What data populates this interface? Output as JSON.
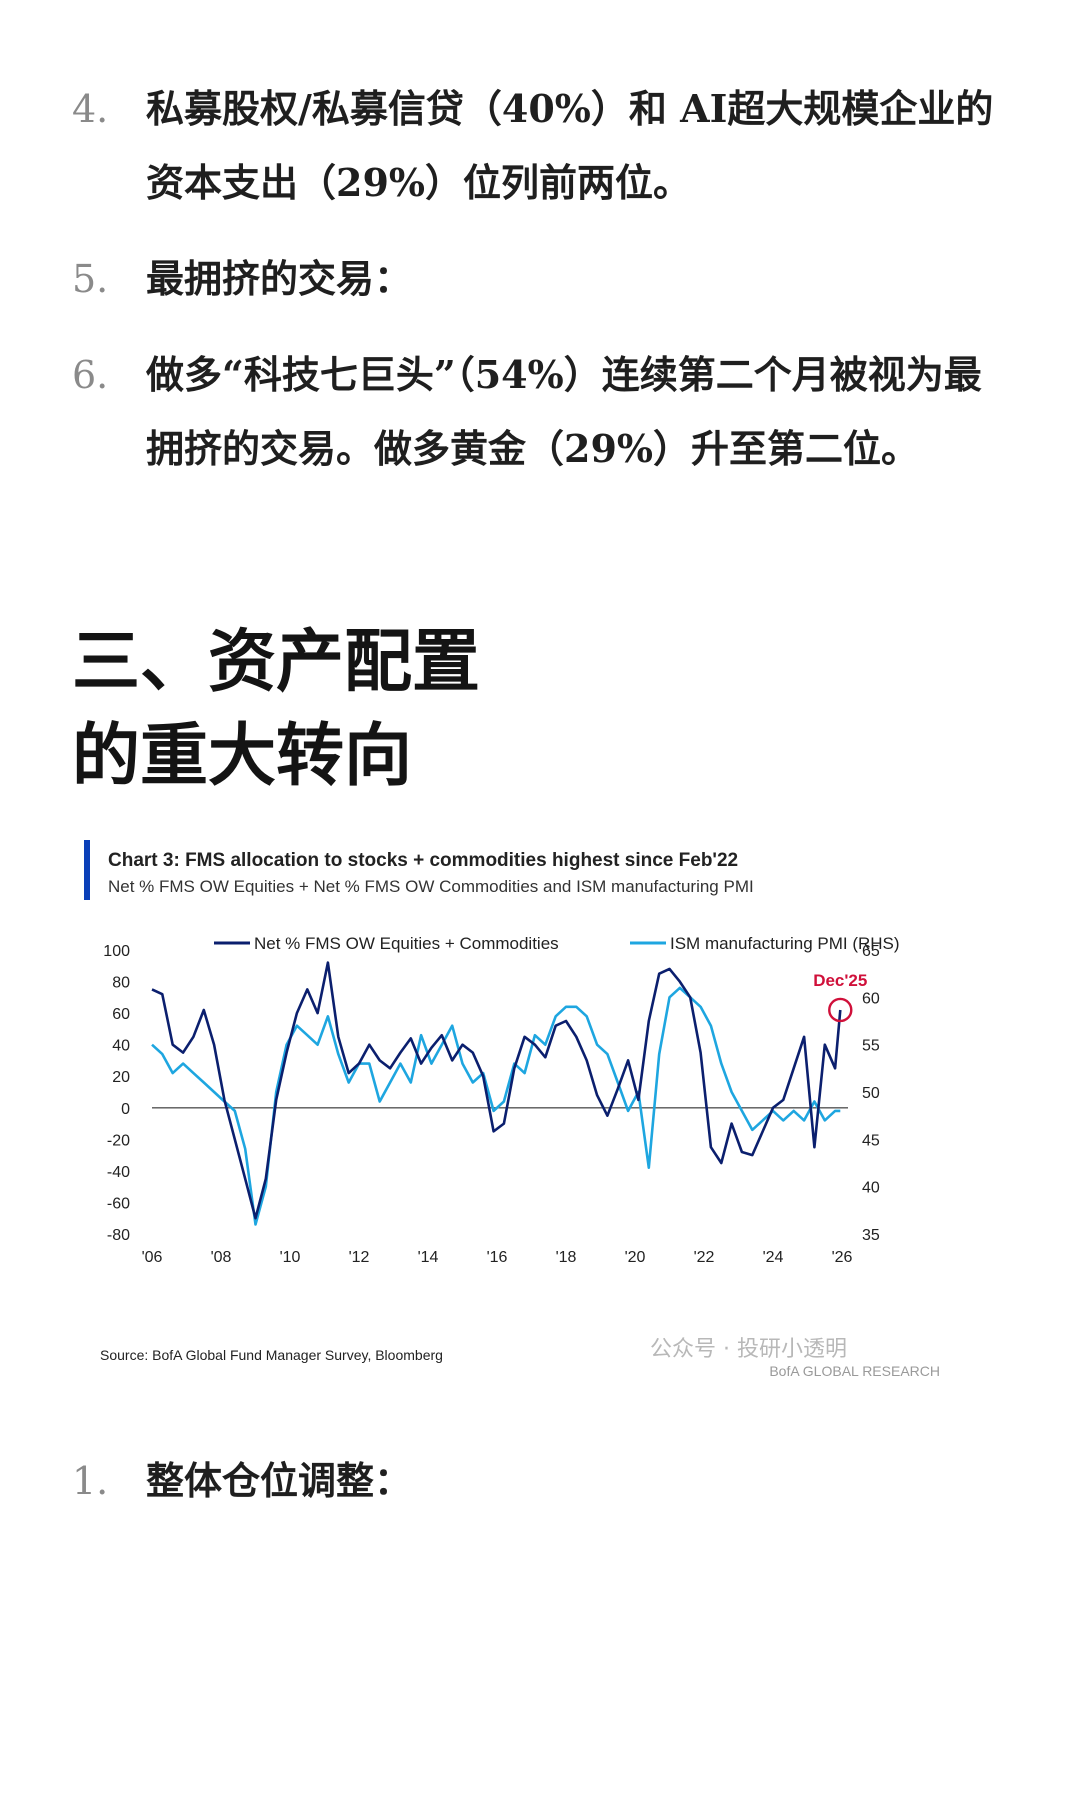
{
  "list_top": [
    {
      "num": "4.",
      "text": "私募股权/私募信贷（40%）和 AI超大规模企业的资本支出（29%）位列前两位。"
    },
    {
      "num": "5.",
      "text": "最拥挤的交易："
    },
    {
      "num": "6.",
      "text": "做多“科技七巨头”（54%）连续第二个月被视为最拥挤的交易。做多黄金（29%）升至第二位。"
    }
  ],
  "section": {
    "title_line1": "三、资产配置",
    "title_line2": "的重大转向"
  },
  "chart_data": {
    "type": "line",
    "title": "Chart 3: FMS allocation to stocks + commodities highest since Feb'22",
    "subtitle": "Net % FMS OW Equities + Net % FMS OW Commodities and ISM manufacturing PMI",
    "x_tick_labels": [
      "'06",
      "'08",
      "'10",
      "'12",
      "'14",
      "'16",
      "'18",
      "'20",
      "'22",
      "'24",
      "'26"
    ],
    "x_range": [
      2006,
      2026
    ],
    "y_left_ticks": [
      100,
      80,
      60,
      40,
      20,
      0,
      -20,
      -40,
      -60,
      -80
    ],
    "y_left_range": [
      -80,
      100
    ],
    "y_right_ticks": [
      65,
      60,
      55,
      50,
      45,
      40,
      35
    ],
    "y_right_range": [
      35,
      65
    ],
    "annotation": "Dec'25",
    "accent_colors": {
      "series1": "#0b1f6e",
      "series2": "#1ea6e0",
      "annotation": "#d0103a",
      "bar": "#0a3fb8"
    },
    "series": [
      {
        "name": "Net % FMS OW Equities + Commodities",
        "axis": "left",
        "x": [
          2006.0,
          2006.3,
          2006.6,
          2006.9,
          2007.2,
          2007.5,
          2007.8,
          2008.1,
          2008.4,
          2008.7,
          2009.0,
          2009.3,
          2009.6,
          2009.9,
          2010.2,
          2010.5,
          2010.8,
          2011.1,
          2011.4,
          2011.7,
          2012.0,
          2012.3,
          2012.6,
          2012.9,
          2013.2,
          2013.5,
          2013.8,
          2014.1,
          2014.4,
          2014.7,
          2015.0,
          2015.3,
          2015.6,
          2015.9,
          2016.2,
          2016.5,
          2016.8,
          2017.1,
          2017.4,
          2017.7,
          2018.0,
          2018.3,
          2018.6,
          2018.9,
          2019.2,
          2019.5,
          2019.8,
          2020.1,
          2020.4,
          2020.7,
          2021.0,
          2021.3,
          2021.6,
          2021.9,
          2022.2,
          2022.5,
          2022.8,
          2023.1,
          2023.4,
          2023.7,
          2024.0,
          2024.3,
          2024.6,
          2024.9,
          2025.2,
          2025.5,
          2025.8,
          2025.95
        ],
        "values": [
          75,
          72,
          40,
          35,
          45,
          62,
          40,
          5,
          -20,
          -45,
          -70,
          -45,
          5,
          35,
          60,
          75,
          60,
          92,
          45,
          22,
          28,
          40,
          30,
          25,
          35,
          44,
          28,
          38,
          46,
          30,
          40,
          35,
          20,
          -15,
          -10,
          25,
          45,
          40,
          32,
          52,
          55,
          45,
          30,
          8,
          -5,
          12,
          30,
          5,
          55,
          85,
          88,
          80,
          70,
          35,
          -25,
          -35,
          -10,
          -28,
          -30,
          -15,
          0,
          5,
          25,
          45,
          -25,
          40,
          25,
          62
        ]
      },
      {
        "name": "ISM manufacturing PMI (RHS)",
        "axis": "right",
        "x": [
          2006.0,
          2006.3,
          2006.6,
          2006.9,
          2007.2,
          2007.5,
          2007.8,
          2008.1,
          2008.4,
          2008.7,
          2009.0,
          2009.3,
          2009.6,
          2009.9,
          2010.2,
          2010.5,
          2010.8,
          2011.1,
          2011.4,
          2011.7,
          2012.0,
          2012.3,
          2012.6,
          2012.9,
          2013.2,
          2013.5,
          2013.8,
          2014.1,
          2014.4,
          2014.7,
          2015.0,
          2015.3,
          2015.6,
          2015.9,
          2016.2,
          2016.5,
          2016.8,
          2017.1,
          2017.4,
          2017.7,
          2018.0,
          2018.3,
          2018.6,
          2018.9,
          2019.2,
          2019.5,
          2019.8,
          2020.1,
          2020.4,
          2020.7,
          2021.0,
          2021.3,
          2021.6,
          2021.9,
          2022.2,
          2022.5,
          2022.8,
          2023.1,
          2023.4,
          2023.7,
          2024.0,
          2024.3,
          2024.6,
          2024.9,
          2025.2,
          2025.5,
          2025.8,
          2025.95
        ],
        "values": [
          55,
          54,
          52,
          53,
          52,
          51,
          50,
          49,
          48,
          44,
          36,
          40,
          50,
          55,
          57,
          56,
          55,
          58,
          54,
          51,
          53,
          53,
          49,
          51,
          53,
          51,
          56,
          53,
          55,
          57,
          53,
          51,
          52,
          48,
          49,
          53,
          52,
          56,
          55,
          58,
          59,
          59,
          58,
          55,
          54,
          51,
          48,
          50,
          42,
          54,
          60,
          61,
          60,
          59,
          57,
          53,
          50,
          48,
          46,
          47,
          48,
          47,
          48,
          47,
          49,
          47,
          48,
          48
        ]
      }
    ],
    "source_text": "Source: BofA Global Fund Manager Survey, Bloomberg",
    "watermark": "公众号 · 投研小透明",
    "brand": "BofA GLOBAL RESEARCH"
  },
  "list_bottom": [
    {
      "num": "1.",
      "text": "整体仓位调整："
    }
  ]
}
